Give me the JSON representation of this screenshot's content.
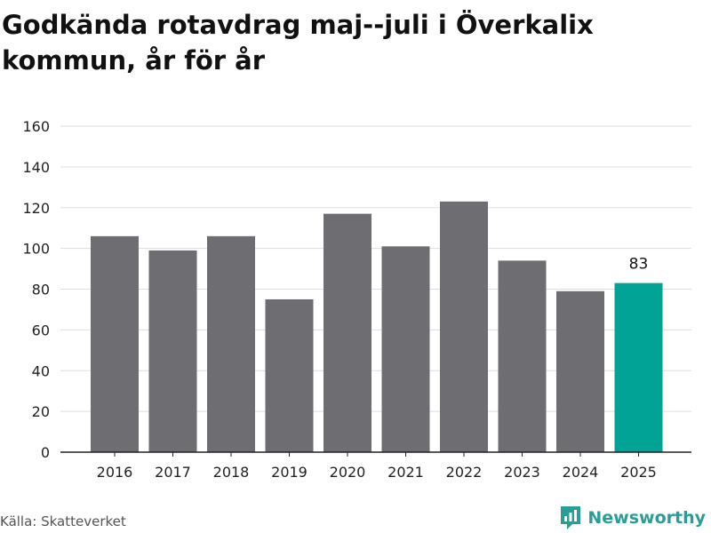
{
  "title": "Godkända rotavdrag maj--juli i Överkalix kommun, år för år",
  "source": "Källa: Skatteverket",
  "brand": {
    "name": "Newsworthy",
    "icon": "newsworthy-logo-icon"
  },
  "colors": {
    "bar": "#6e6d72",
    "highlight": "#00a396",
    "grid": "#dddddd",
    "axis": "#222222"
  },
  "chart_data": {
    "type": "bar",
    "title": "Godkända rotavdrag maj--juli i Överkalix kommun, år för år",
    "xlabel": "",
    "ylabel": "",
    "categories": [
      "2016",
      "2017",
      "2018",
      "2019",
      "2020",
      "2021",
      "2022",
      "2023",
      "2024",
      "2025"
    ],
    "values": [
      106,
      99,
      106,
      75,
      117,
      101,
      123,
      94,
      79,
      83
    ],
    "highlight_index": 9,
    "data_labels": [
      {
        "index": 9,
        "text": "83"
      }
    ],
    "ylim": [
      0,
      160
    ],
    "yticks": [
      0,
      20,
      40,
      60,
      80,
      100,
      120,
      140,
      160
    ],
    "grid": true,
    "legend": "none"
  }
}
